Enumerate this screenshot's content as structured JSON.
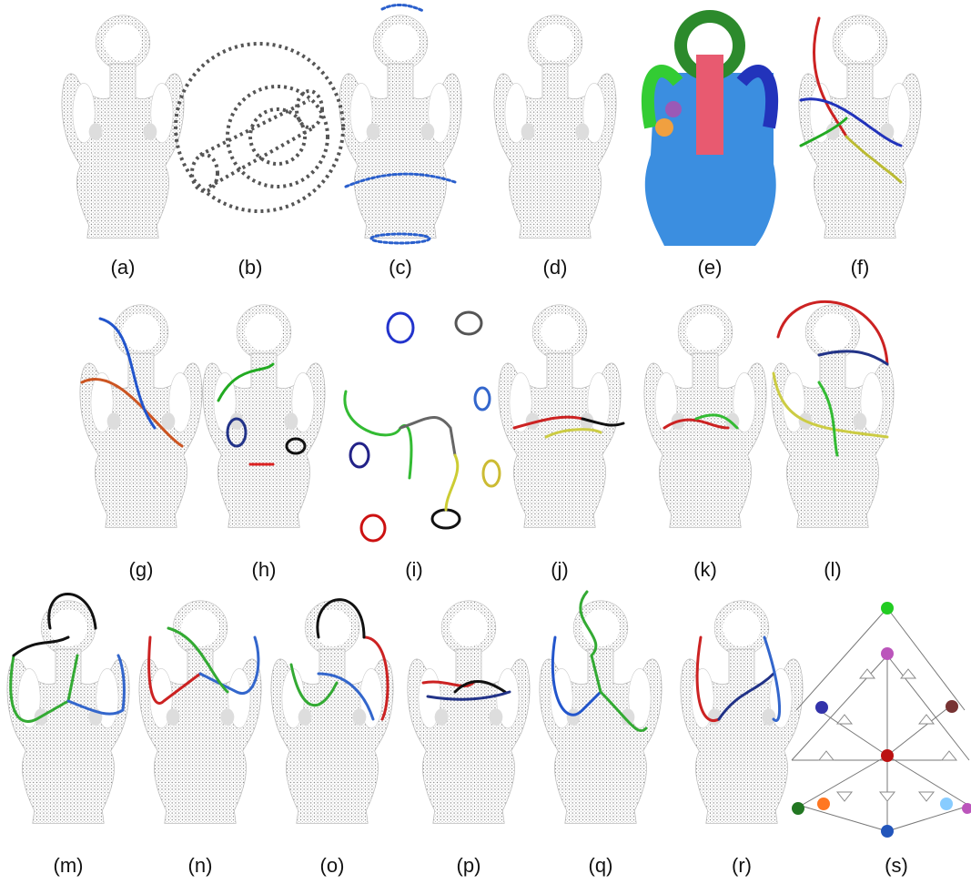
{
  "panels": [
    {
      "label": "(a)"
    },
    {
      "label": "(b)"
    },
    {
      "label": "(c)"
    },
    {
      "label": "(d)"
    },
    {
      "label": "(e)"
    },
    {
      "label": "(f)"
    },
    {
      "label": "(g)"
    },
    {
      "label": "(h)"
    },
    {
      "label": "(i)"
    },
    {
      "label": "(j)"
    },
    {
      "label": "(k)"
    },
    {
      "label": "(l)"
    },
    {
      "label": "(m)"
    },
    {
      "label": "(n)"
    },
    {
      "label": "(o)"
    },
    {
      "label": "(p)"
    },
    {
      "label": "(q)"
    },
    {
      "label": "(r)"
    },
    {
      "label": "(s)"
    }
  ]
}
